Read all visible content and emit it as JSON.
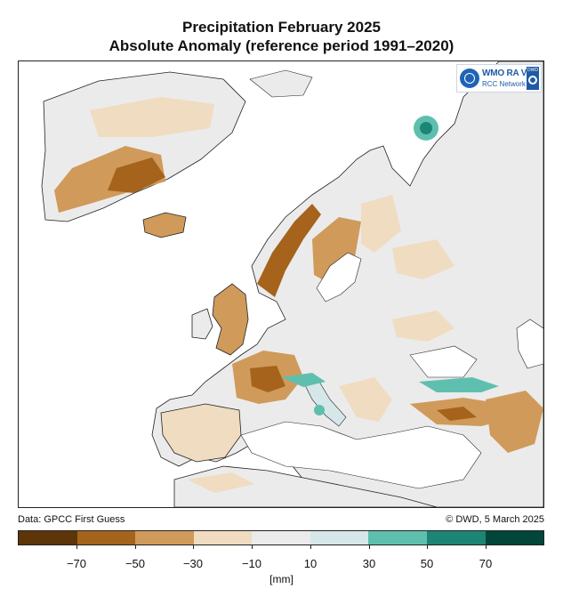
{
  "title": "Precipitation February 2025",
  "subtitle": "Absolute Anomaly (reference period 1991–2020)",
  "logo": {
    "line1": "WMO RA VI",
    "line2": "RCC Network",
    "badge": "DWD"
  },
  "credits": {
    "data": "Data: GPCC First Guess",
    "copyright": "© DWD, 5 March 2025"
  },
  "legend": {
    "colors": [
      "#5c3508",
      "#a5631b",
      "#d09a5a",
      "#f0dcc0",
      "#ebebeb",
      "#d5e7e8",
      "#5fbfaf",
      "#1c8576",
      "#00473a"
    ],
    "ticks": [
      "−70",
      "−50",
      "−30",
      "−10",
      "10",
      "30",
      "50",
      "70"
    ],
    "unit": "[mm]"
  },
  "map": {
    "region": "Europe",
    "palette": {
      "land": "#ebebeb",
      "sea": "#ffffff",
      "borders": "#222222"
    },
    "features": [
      {
        "area": "Greenland",
        "class": "dry"
      },
      {
        "area": "Iceland",
        "class": "dry"
      },
      {
        "area": "Norway west coast",
        "class": "very dry"
      },
      {
        "area": "British Isles",
        "class": "dry"
      },
      {
        "area": "France",
        "class": "dry"
      },
      {
        "area": "Alps",
        "class": "wet"
      },
      {
        "area": "Italy",
        "class": "wet"
      },
      {
        "area": "Turkey south",
        "class": "dry"
      },
      {
        "area": "Barents Sea region",
        "class": "very wet"
      }
    ]
  }
}
